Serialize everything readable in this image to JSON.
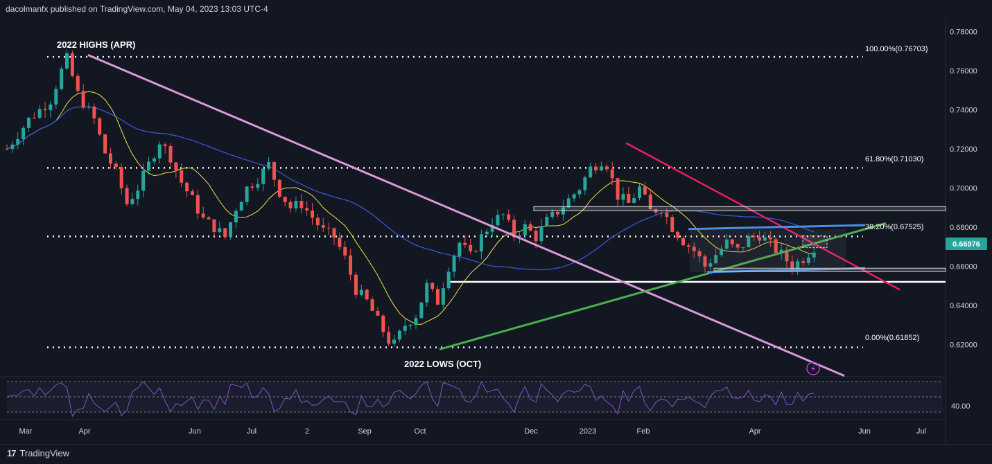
{
  "header": {
    "publisher": "dacolmanfx published on TradingView.com, May 04, 2023 13:03 UTC-4"
  },
  "footer": {
    "brand": "TradingView",
    "logo_icon": "tradingview-logo-icon"
  },
  "chart_data": {
    "type": "candlestick",
    "price_axis": {
      "ticks": [
        "0.78000",
        "0.76000",
        "0.74000",
        "0.72000",
        "0.70000",
        "0.68000",
        "0.66000",
        "0.64000",
        "0.62000"
      ],
      "tick_values": [
        0.78,
        0.76,
        0.74,
        0.72,
        0.7,
        0.68,
        0.66,
        0.64,
        0.62
      ],
      "ylim": [
        0.6035,
        0.7855
      ]
    },
    "last_price": {
      "label": "0.66976",
      "value": 0.66976,
      "color": "#26a69a"
    },
    "time_axis": {
      "labels": [
        "Mar",
        "Apr",
        "Jun",
        "Jul",
        "2",
        "Sep",
        "Oct",
        "Dec",
        "2023",
        "Feb",
        "Apr",
        "Jun",
        "Jul"
      ]
    },
    "annotations": {
      "highs": "2022 HIGHS (APR)",
      "lows": "2022 LOWS (OCT)"
    },
    "fibonacci": [
      {
        "label": "100.00%(0.76703)",
        "value": 0.76703
      },
      {
        "label": "61.80%(0.71030)",
        "value": 0.7103
      },
      {
        "label": "38.20%(0.67525)",
        "value": 0.67525
      },
      {
        "label": "0.00%(0.61852)",
        "value": 0.61852
      }
    ],
    "support_line": {
      "value": 0.652
    },
    "rsi": {
      "tick": "40.00",
      "tick_value": 40
    },
    "colors": {
      "up": "#26a69a",
      "down": "#ef5350",
      "ma50": "#f0e442",
      "ma200": "#3b5bdb",
      "trend_down": "#d99ad9",
      "trend_up": "#4caf50",
      "channel_down": "#e91e63",
      "channel_up": "#4a90e2",
      "rsi": "#7e57c2"
    },
    "price_path": [
      [
        0,
        0.72
      ],
      [
        4,
        0.735
      ],
      [
        8,
        0.745
      ],
      [
        10,
        0.76
      ],
      [
        11,
        0.766
      ],
      [
        13,
        0.748
      ],
      [
        16,
        0.735
      ],
      [
        18,
        0.718
      ],
      [
        20,
        0.708
      ],
      [
        22,
        0.692
      ],
      [
        24,
        0.7
      ],
      [
        26,
        0.712
      ],
      [
        28,
        0.724
      ],
      [
        30,
        0.716
      ],
      [
        32,
        0.703
      ],
      [
        34,
        0.694
      ],
      [
        36,
        0.684
      ],
      [
        38,
        0.68
      ],
      [
        40,
        0.675
      ],
      [
        42,
        0.69
      ],
      [
        44,
        0.7
      ],
      [
        46,
        0.705
      ],
      [
        48,
        0.712
      ],
      [
        50,
        0.698
      ],
      [
        52,
        0.69
      ],
      [
        54,
        0.692
      ],
      [
        56,
        0.685
      ],
      [
        58,
        0.678
      ],
      [
        60,
        0.675
      ],
      [
        62,
        0.664
      ],
      [
        64,
        0.648
      ],
      [
        66,
        0.642
      ],
      [
        68,
        0.632
      ],
      [
        70,
        0.622
      ],
      [
        71,
        0.62
      ],
      [
        73,
        0.63
      ],
      [
        75,
        0.635
      ],
      [
        77,
        0.65
      ],
      [
        79,
        0.642
      ],
      [
        81,
        0.66
      ],
      [
        83,
        0.672
      ],
      [
        85,
        0.665
      ],
      [
        87,
        0.675
      ],
      [
        89,
        0.683
      ],
      [
        91,
        0.686
      ],
      [
        93,
        0.676
      ],
      [
        95,
        0.68
      ],
      [
        97,
        0.675
      ],
      [
        99,
        0.683
      ],
      [
        101,
        0.688
      ],
      [
        103,
        0.694
      ],
      [
        105,
        0.7
      ],
      [
        107,
        0.71
      ],
      [
        109,
        0.714
      ],
      [
        110,
        0.712
      ],
      [
        112,
        0.696
      ],
      [
        114,
        0.692
      ],
      [
        116,
        0.7
      ],
      [
        118,
        0.688
      ],
      [
        120,
        0.69
      ],
      [
        122,
        0.68
      ],
      [
        124,
        0.673
      ],
      [
        126,
        0.668
      ],
      [
        128,
        0.66
      ],
      [
        130,
        0.666
      ],
      [
        132,
        0.672
      ],
      [
        134,
        0.668
      ],
      [
        136,
        0.674
      ],
      [
        138,
        0.676
      ],
      [
        140,
        0.671
      ],
      [
        142,
        0.666
      ],
      [
        144,
        0.66
      ],
      [
        146,
        0.664
      ],
      [
        148,
        0.67
      ]
    ]
  }
}
